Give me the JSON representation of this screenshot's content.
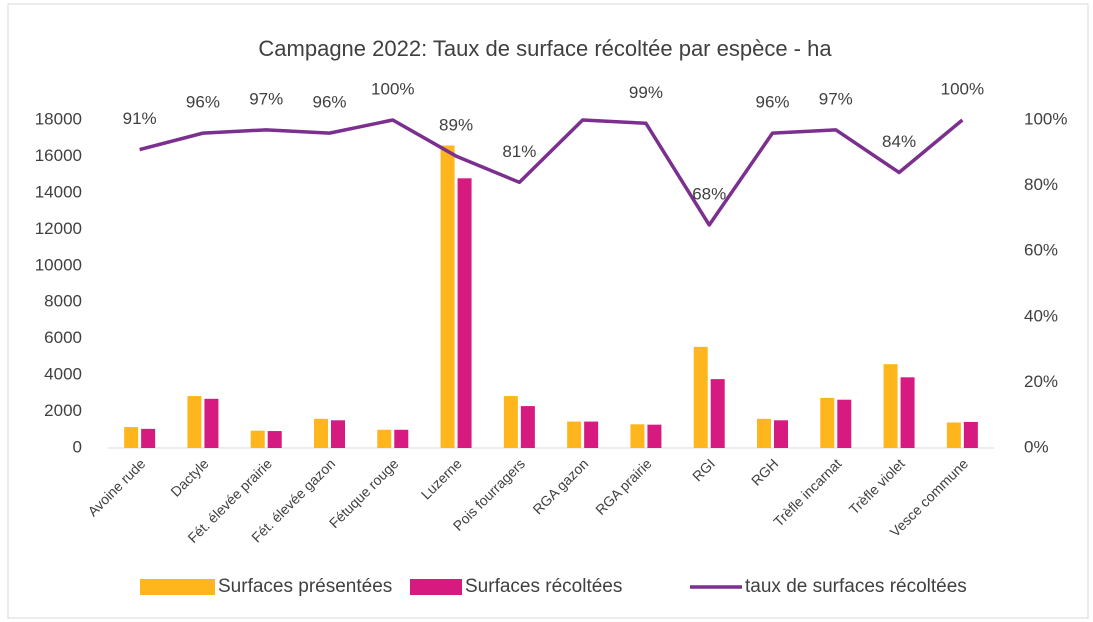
{
  "chart_data": {
    "type": "bar_line",
    "title": "Campagne 2022: Taux de surface récoltée par espèce - ha",
    "categories": [
      "Avoine rude",
      "Dactyle",
      "Fét. élevée prairie",
      "Fét. élevée gazon",
      "Fétuque rouge",
      "Luzerne",
      "Pois fourragers",
      "RGA gazon",
      "RGA prairie",
      "RGI",
      "RGH",
      "Trèfle incarnat",
      "Trèfle violet",
      "Vesce commune"
    ],
    "series": [
      {
        "name": "Surfaces présentées",
        "color": "#ffb61c",
        "type": "bar",
        "values": [
          1150,
          2850,
          950,
          1600,
          1000,
          16600,
          2850,
          1450,
          1300,
          5550,
          1600,
          2750,
          4600,
          1400
        ]
      },
      {
        "name": "Surfaces récoltées",
        "color": "#d61a7f",
        "type": "bar",
        "values": [
          1050,
          2700,
          930,
          1520,
          1000,
          14800,
          2300,
          1450,
          1280,
          3780,
          1520,
          2650,
          3880,
          1430
        ]
      },
      {
        "name": "taux de surfaces récoltées",
        "color": "#7b2f8e",
        "type": "line",
        "axis": "y2",
        "values": [
          91,
          96,
          97,
          96,
          100,
          89,
          81,
          100,
          99,
          68,
          96,
          97,
          84,
          100
        ],
        "value_labels": [
          "91%",
          "96%",
          "97%",
          "96%",
          "100%",
          "89%",
          "81%",
          null,
          "99%",
          "68%",
          "96%",
          "97%",
          "84%",
          "100%"
        ]
      }
    ],
    "ylim": [
      0,
      18000
    ],
    "yticks": [
      0,
      2000,
      4000,
      6000,
      8000,
      10000,
      12000,
      14000,
      16000,
      18000
    ],
    "y2lim": [
      0,
      100
    ],
    "y2ticks": [
      {
        "value": 0,
        "label": "0%"
      },
      {
        "value": 20,
        "label": "20%"
      },
      {
        "value": 40,
        "label": "40%"
      },
      {
        "value": 60,
        "label": "60%"
      },
      {
        "value": 80,
        "label": "80%"
      },
      {
        "value": 100,
        "label": "100%"
      }
    ],
    "grid": false,
    "legend": "bottom"
  }
}
